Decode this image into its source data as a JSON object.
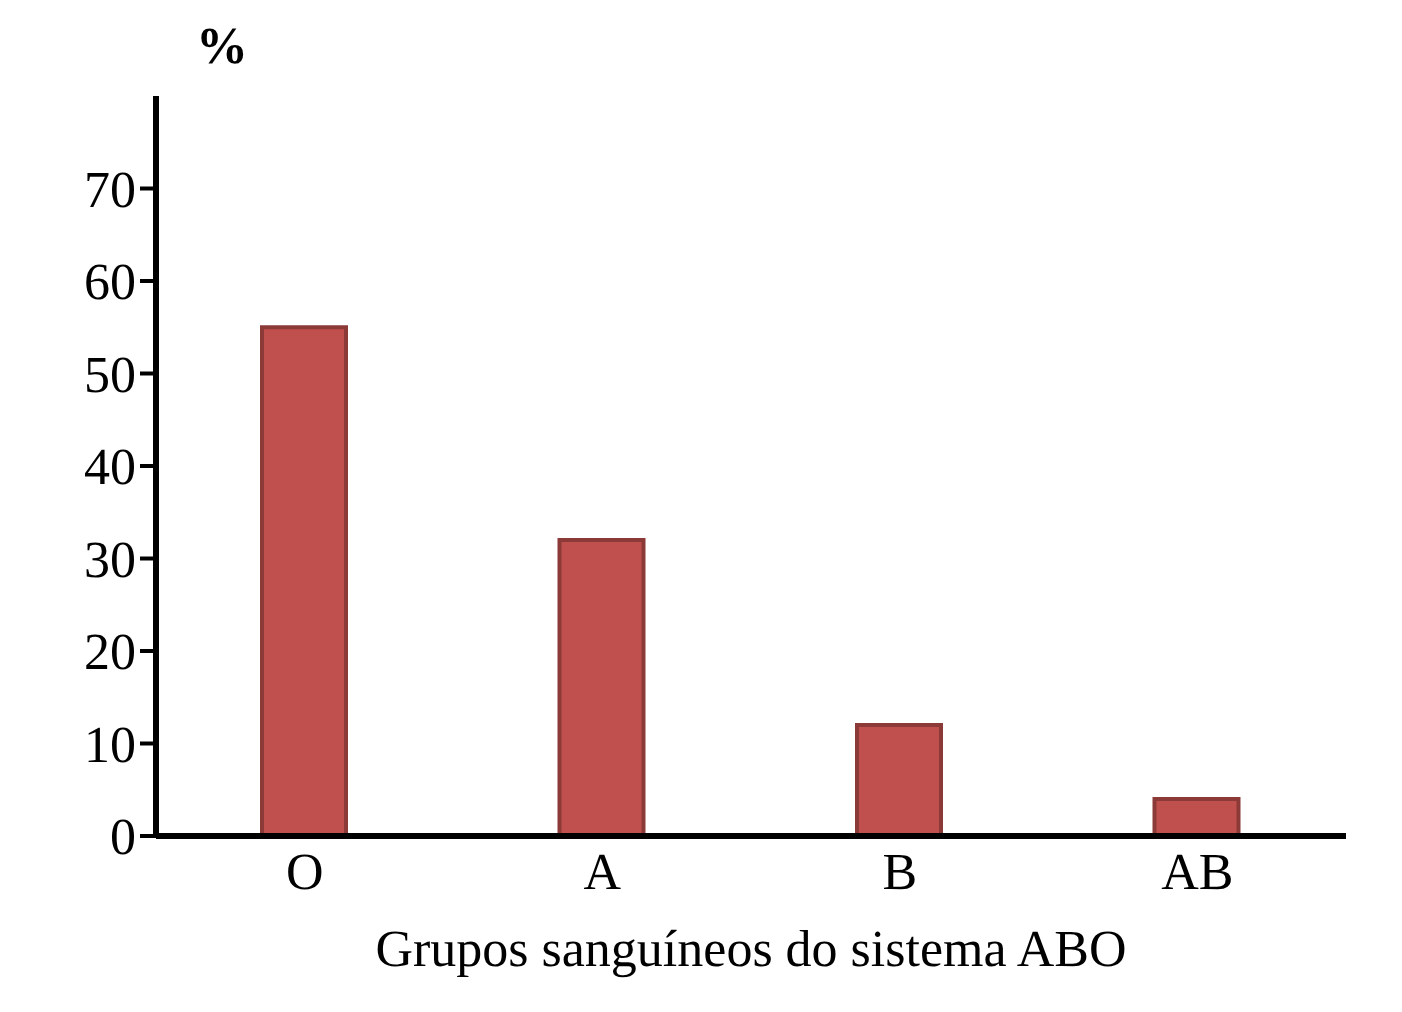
{
  "chart_data": {
    "type": "bar",
    "ylabel": "%",
    "xlabel": "Grupos sanguíneos do sistema ABO",
    "categories": [
      "O",
      "A",
      "B",
      "AB"
    ],
    "values": [
      55,
      32,
      12,
      4
    ],
    "color": "#c0504d",
    "ylim": [
      0,
      80
    ],
    "yticks": [
      0,
      10,
      20,
      30,
      40,
      50,
      60,
      70
    ],
    "grid": false,
    "legend": false
  }
}
